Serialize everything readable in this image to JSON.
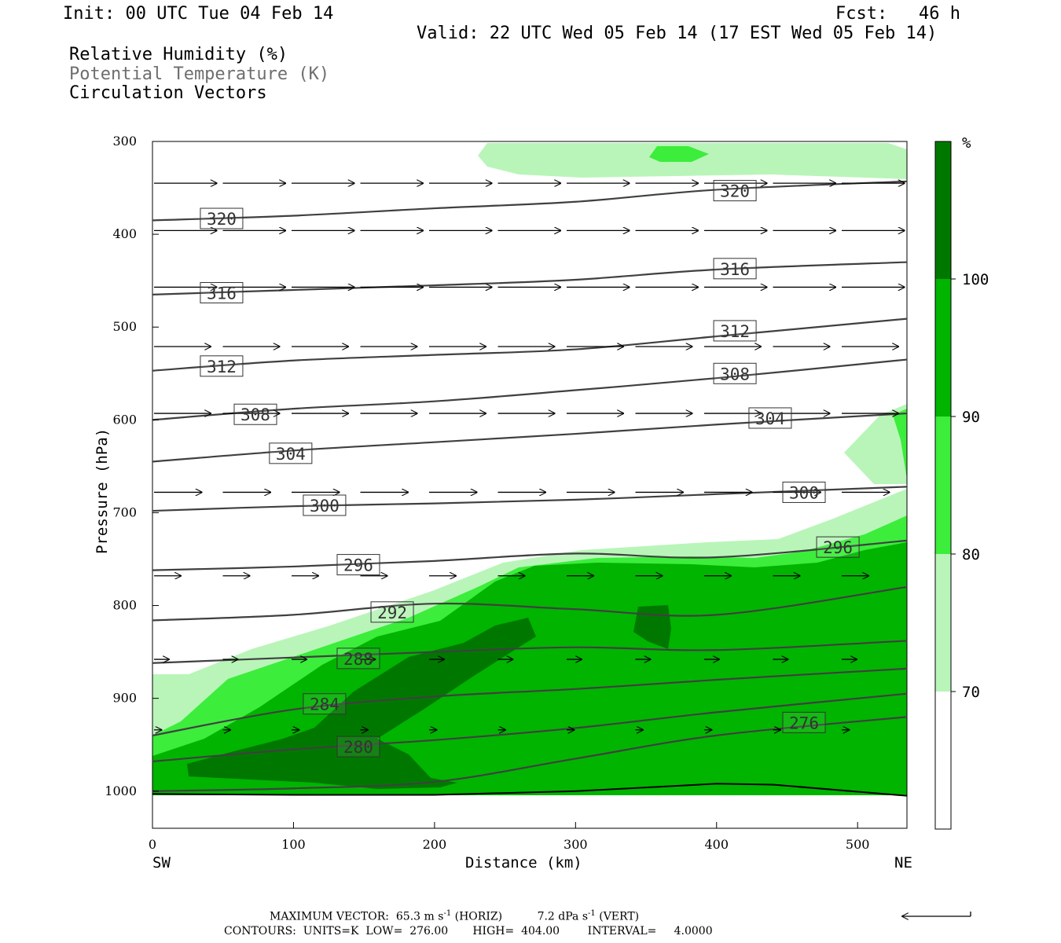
{
  "header": {
    "init": "Init: 00 UTC Tue 04 Feb 14",
    "fcst": "Fcst:   46 h",
    "valid": "Valid: 22 UTC Wed 05 Feb 14 (17 EST Wed 05 Feb 14)",
    "field1": "Relative Humidity (%)",
    "field2": "Potential Temperature (K)",
    "field3": "Circulation Vectors"
  },
  "footer": {
    "max_label": "MAXIMUM VECTOR:",
    "max_horiz_value": "65.3",
    "max_horiz_unit": "m s",
    "exp": "-1",
    "max_horiz_tag": "(HORIZ)",
    "max_vert_value": "7.2",
    "max_vert_unit": "dPa s",
    "max_vert_tag": "(VERT)",
    "contours": "CONTOURS:  UNITS=K  LOW=  276.00       HIGH=  404.00        INTERVAL=     4.0000"
  },
  "colors": {
    "rh70": "#b9f5b9",
    "rh80": "#3ced3c",
    "rh90": "#00b400",
    "rh100": "#007800",
    "contour": "#404040"
  },
  "chart_data": {
    "type": "cross-section contour",
    "x_label": "Distance (km)",
    "y_label": "Pressure (hPa)",
    "x_ticks": [
      0,
      100,
      200,
      300,
      400,
      500
    ],
    "y_ticks": [
      300,
      400,
      500,
      600,
      700,
      800,
      900,
      1000
    ],
    "xlim": [
      0,
      535
    ],
    "ylim": [
      1040,
      300
    ],
    "y_scale": "linear (pressure, decreasing upward)",
    "x_end_left": "SW",
    "x_end_right": "NE",
    "colorbar": {
      "unit": "%",
      "levels": [
        "70",
        "80",
        "90",
        "100"
      ]
    },
    "rh_fill_bands": [
      {
        "min_percent": 70,
        "color": "rh70"
      },
      {
        "min_percent": 80,
        "color": "rh80"
      },
      {
        "min_percent": 90,
        "color": "rh90"
      },
      {
        "min_percent": 100,
        "color": "rh100"
      }
    ],
    "theta_contours": [
      {
        "value": 320,
        "points": [
          [
            0,
            385
          ],
          [
            100,
            380
          ],
          [
            200,
            372
          ],
          [
            300,
            365
          ],
          [
            400,
            352
          ],
          [
            535,
            343
          ]
        ],
        "labels": [
          {
            "x": 49,
            "p": 383
          },
          {
            "x": 413,
            "p": 353
          }
        ]
      },
      {
        "value": 316,
        "points": [
          [
            0,
            465
          ],
          [
            100,
            460
          ],
          [
            200,
            455
          ],
          [
            300,
            449
          ],
          [
            400,
            438
          ],
          [
            535,
            430
          ]
        ],
        "labels": [
          {
            "x": 49,
            "p": 463
          },
          {
            "x": 413,
            "p": 437
          }
        ]
      },
      {
        "value": 312,
        "points": [
          [
            0,
            547
          ],
          [
            100,
            536
          ],
          [
            200,
            530
          ],
          [
            300,
            524
          ],
          [
            400,
            510
          ],
          [
            535,
            491
          ]
        ],
        "labels": [
          {
            "x": 49,
            "p": 542
          },
          {
            "x": 413,
            "p": 504
          }
        ]
      },
      {
        "value": 308,
        "points": [
          [
            0,
            600
          ],
          [
            100,
            588
          ],
          [
            200,
            580
          ],
          [
            300,
            568
          ],
          [
            400,
            555
          ],
          [
            535,
            535
          ]
        ],
        "labels": [
          {
            "x": 73,
            "p": 594
          },
          {
            "x": 413,
            "p": 550
          }
        ]
      },
      {
        "value": 304,
        "points": [
          [
            0,
            645
          ],
          [
            100,
            633
          ],
          [
            200,
            624
          ],
          [
            300,
            615
          ],
          [
            400,
            605
          ],
          [
            535,
            593
          ]
        ],
        "labels": [
          {
            "x": 98,
            "p": 636
          },
          {
            "x": 438,
            "p": 598
          }
        ]
      },
      {
        "value": 300,
        "points": [
          [
            0,
            698
          ],
          [
            100,
            693
          ],
          [
            200,
            690
          ],
          [
            300,
            686
          ],
          [
            400,
            680
          ],
          [
            535,
            672
          ]
        ],
        "labels": [
          {
            "x": 122,
            "p": 692
          },
          {
            "x": 462,
            "p": 678
          }
        ]
      },
      {
        "value": 296,
        "points": [
          [
            0,
            762
          ],
          [
            100,
            758
          ],
          [
            200,
            752
          ],
          [
            300,
            744
          ],
          [
            400,
            748
          ],
          [
            535,
            730
          ]
        ],
        "labels": [
          {
            "x": 146,
            "p": 756
          },
          {
            "x": 486,
            "p": 737
          }
        ]
      },
      {
        "value": 292,
        "points": [
          [
            0,
            816
          ],
          [
            100,
            810
          ],
          [
            200,
            798
          ],
          [
            300,
            804
          ],
          [
            400,
            810
          ],
          [
            535,
            780
          ]
        ],
        "labels": [
          {
            "x": 170,
            "p": 807
          }
        ]
      },
      {
        "value": 288,
        "points": [
          [
            0,
            862
          ],
          [
            100,
            856
          ],
          [
            200,
            850
          ],
          [
            300,
            845
          ],
          [
            400,
            848
          ],
          [
            535,
            838
          ]
        ],
        "labels": [
          {
            "x": 146,
            "p": 857
          }
        ]
      },
      {
        "value": 284,
        "points": [
          [
            0,
            940
          ],
          [
            100,
            912
          ],
          [
            200,
            898
          ],
          [
            300,
            890
          ],
          [
            400,
            880
          ],
          [
            535,
            868
          ]
        ],
        "labels": [
          {
            "x": 122,
            "p": 906
          }
        ]
      },
      {
        "value": 280,
        "points": [
          [
            0,
            968
          ],
          [
            100,
            955
          ],
          [
            200,
            945
          ],
          [
            300,
            932
          ],
          [
            400,
            915
          ],
          [
            535,
            895
          ]
        ],
        "labels": [
          {
            "x": 146,
            "p": 952
          }
        ]
      },
      {
        "value": 276,
        "points": [
          [
            0,
            1000
          ],
          [
            100,
            997
          ],
          [
            200,
            990
          ],
          [
            300,
            965
          ],
          [
            400,
            940
          ],
          [
            535,
            920
          ]
        ],
        "labels": [
          {
            "x": 462,
            "p": 926
          }
        ]
      }
    ],
    "terrain_line_points": [
      [
        0,
        1003
      ],
      [
        100,
        1004
      ],
      [
        200,
        1004
      ],
      [
        300,
        1000
      ],
      [
        400,
        992
      ],
      [
        440,
        993
      ],
      [
        535,
        1005
      ]
    ],
    "vector_rows": [
      {
        "p": 345,
        "u": 42,
        "w": 0
      },
      {
        "p": 396,
        "u": 42,
        "w": 0
      },
      {
        "p": 457,
        "u": 42,
        "w": 0
      },
      {
        "p": 521,
        "u": 38,
        "w": 0
      },
      {
        "p": 593,
        "u": 38,
        "w": 0
      },
      {
        "p": 678,
        "u": 32,
        "w": 0
      },
      {
        "p": 768,
        "u": 18,
        "w": 0
      },
      {
        "p": 858,
        "u": 10,
        "w": 0
      },
      {
        "p": 934,
        "u": 5,
        "w": 0
      }
    ]
  }
}
